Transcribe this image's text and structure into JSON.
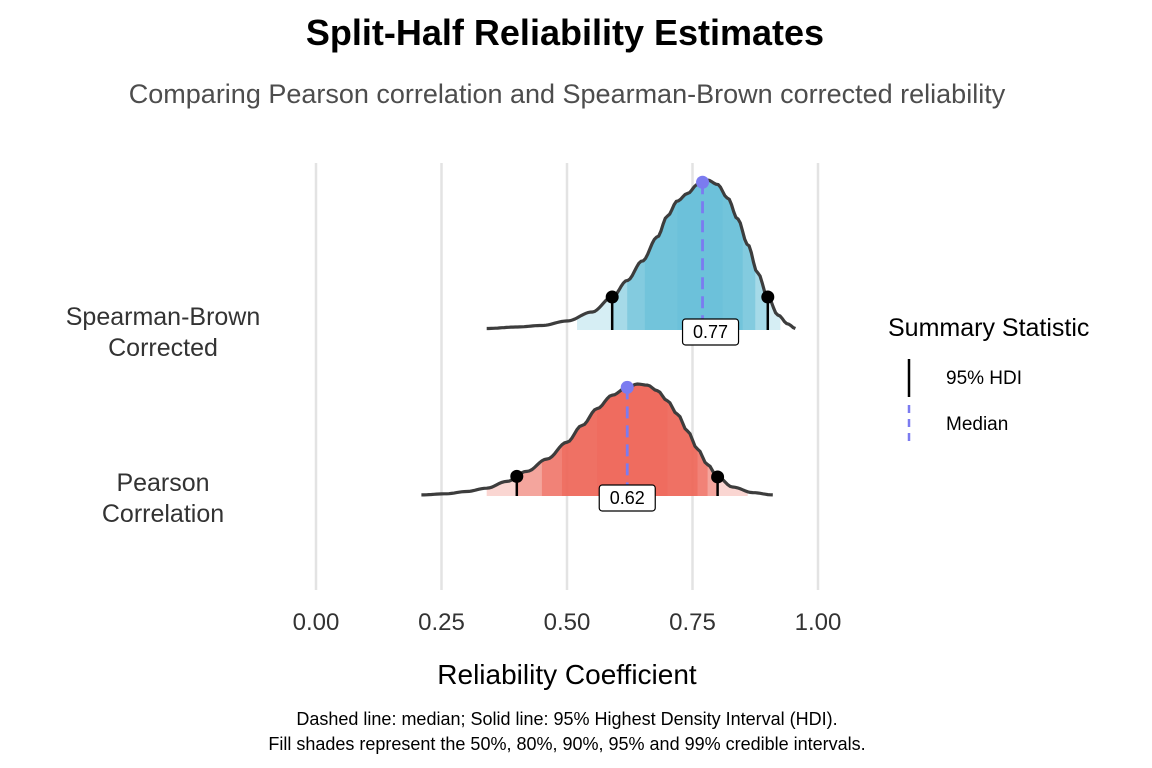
{
  "chart_data": {
    "type": "area",
    "title": "Split-Half Reliability Estimates",
    "subtitle": "Comparing Pearson correlation and Spearman-Brown corrected reliability",
    "xlabel": "Reliability Coefficient",
    "xlim": [
      0,
      1
    ],
    "x_ticks": [
      "0.00",
      "0.25",
      "0.50",
      "0.75",
      "1.00"
    ],
    "x_tick_values": [
      0,
      0.25,
      0.5,
      0.75,
      1
    ],
    "grid": "vertical",
    "caption": [
      "Dashed line: median; Solid line: 95% Highest Density Interval (HDI).",
      "Fill shades represent the 50%, 80%, 90%, 95% and 99% credible intervals."
    ],
    "legend": {
      "title": "Summary Statistic",
      "position": "right",
      "items": [
        {
          "label": "95% HDI",
          "style": "solid",
          "color": "#000000"
        },
        {
          "label": "Median",
          "style": "dashed",
          "color": "#7b7bf0"
        }
      ]
    },
    "series": [
      {
        "name": "Spearman-Brown Corrected",
        "label_lines": [
          "Spearman-Brown",
          "Corrected"
        ],
        "color": "#6cc1d9",
        "median": 0.77,
        "median_label": "0.77",
        "hdi95": [
          0.59,
          0.9
        ],
        "range": [
          0.34,
          0.955
        ],
        "intervals": {
          "99": [
            0.52,
            0.925
          ],
          "95": [
            0.59,
            0.9
          ],
          "90": [
            0.62,
            0.875
          ],
          "80": [
            0.655,
            0.85
          ],
          "50": [
            0.72,
            0.81
          ]
        },
        "density": [
          [
            0.34,
            0.01
          ],
          [
            0.4,
            0.02
          ],
          [
            0.45,
            0.03
          ],
          [
            0.5,
            0.06
          ],
          [
            0.55,
            0.12
          ],
          [
            0.59,
            0.22
          ],
          [
            0.62,
            0.33
          ],
          [
            0.65,
            0.46
          ],
          [
            0.68,
            0.62
          ],
          [
            0.7,
            0.76
          ],
          [
            0.72,
            0.86
          ],
          [
            0.74,
            0.91
          ],
          [
            0.76,
            0.97
          ],
          [
            0.78,
            1.0
          ],
          [
            0.8,
            0.97
          ],
          [
            0.82,
            0.88
          ],
          [
            0.84,
            0.74
          ],
          [
            0.86,
            0.57
          ],
          [
            0.88,
            0.38
          ],
          [
            0.9,
            0.22
          ],
          [
            0.92,
            0.1
          ],
          [
            0.94,
            0.04
          ],
          [
            0.955,
            0.01
          ]
        ]
      },
      {
        "name": "Pearson Correlation",
        "label_lines": [
          "Pearson",
          "Correlation"
        ],
        "color": "#ee6b5e",
        "median": 0.62,
        "median_label": "0.62",
        "hdi95": [
          0.4,
          0.8
        ],
        "range": [
          0.21,
          0.91
        ],
        "intervals": {
          "99": [
            0.34,
            0.86
          ],
          "95": [
            0.4,
            0.8
          ],
          "90": [
            0.45,
            0.78
          ],
          "80": [
            0.49,
            0.76
          ],
          "50": [
            0.56,
            0.7
          ]
        },
        "density": [
          [
            0.21,
            0.01
          ],
          [
            0.26,
            0.02
          ],
          [
            0.3,
            0.04
          ],
          [
            0.34,
            0.07
          ],
          [
            0.38,
            0.13
          ],
          [
            0.42,
            0.22
          ],
          [
            0.46,
            0.33
          ],
          [
            0.5,
            0.48
          ],
          [
            0.53,
            0.63
          ],
          [
            0.56,
            0.78
          ],
          [
            0.59,
            0.9
          ],
          [
            0.62,
            0.97
          ],
          [
            0.64,
            1.0
          ],
          [
            0.66,
            0.99
          ],
          [
            0.68,
            0.94
          ],
          [
            0.7,
            0.85
          ],
          [
            0.72,
            0.73
          ],
          [
            0.74,
            0.58
          ],
          [
            0.76,
            0.42
          ],
          [
            0.78,
            0.28
          ],
          [
            0.8,
            0.17
          ],
          [
            0.83,
            0.08
          ],
          [
            0.87,
            0.03
          ],
          [
            0.91,
            0.01
          ]
        ]
      }
    ]
  }
}
